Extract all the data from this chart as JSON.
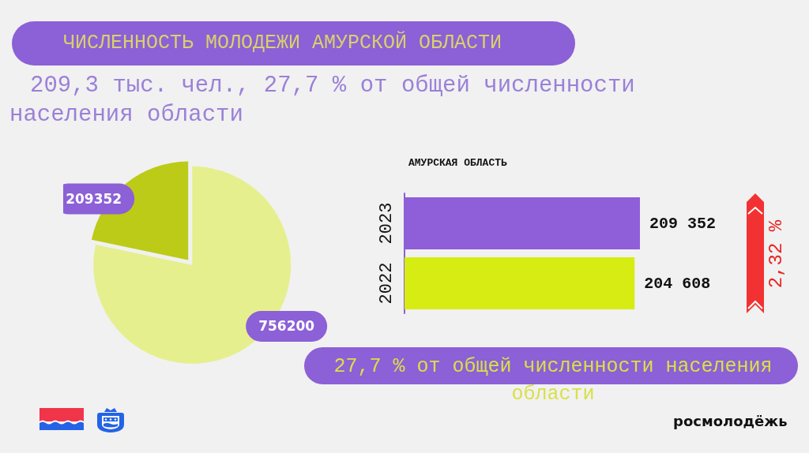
{
  "chart_data": [
    {
      "type": "pie",
      "title": "ЧИСЛЕННОСТЬ МОЛОДЕЖИ АМУРСКОЙ ОБЛАСТИ",
      "subtitle": "209,3 тыс. чел., 27,7 % от общей численности населения области",
      "categories": [
        null,
        null
      ],
      "values": [
        209352,
        756200
      ],
      "colors": [
        "#bccb17",
        "#e6ef8e"
      ],
      "data_labels": true
    },
    {
      "type": "bar",
      "orientation": "horizontal",
      "title": "АМУРСКАЯ ОБЛАСТЬ",
      "categories": [
        "2023",
        "2022"
      ],
      "values": [
        209352,
        204608
      ],
      "colors": [
        "#8e5fd9",
        "#d6ec12"
      ],
      "value_labels": [
        "209 352",
        "204 608"
      ],
      "tick_labels": "y",
      "annotations": [
        "2,32 %",
        "27,7 % от общей численности населения области",
        "росмолодёжь"
      ]
    }
  ]
}
